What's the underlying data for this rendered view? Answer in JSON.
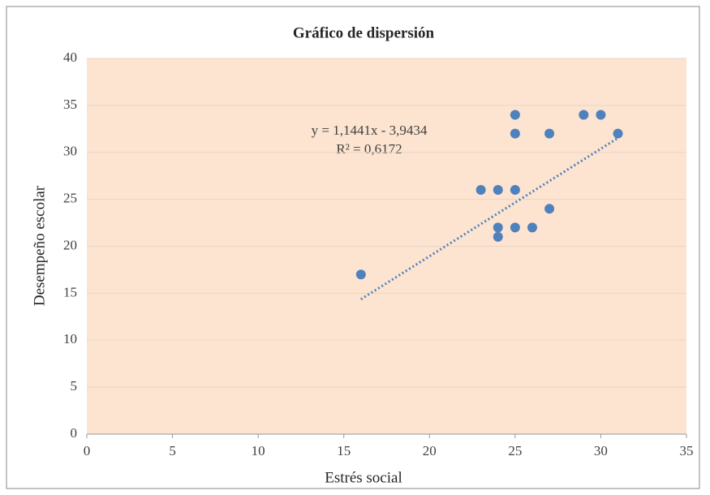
{
  "chart_data": {
    "type": "scatter",
    "title": "Gráfico de dispersión",
    "x_label": "Estrés social",
    "y_label": "Desempeño escolar",
    "x": [
      16,
      23,
      24,
      25,
      24,
      24,
      25,
      26,
      27,
      25,
      25,
      27,
      29,
      30,
      31
    ],
    "y": [
      17,
      26,
      26,
      26,
      22,
      21,
      22,
      22,
      24,
      34,
      32,
      32,
      34,
      34,
      32
    ],
    "color": "#4f81bd",
    "xlim": [
      0,
      35
    ],
    "xticks": [
      0,
      5,
      10,
      15,
      20,
      25,
      30,
      35
    ],
    "ylim": [
      0,
      40
    ],
    "yticks": [
      0,
      5,
      10,
      15,
      20,
      25,
      30,
      35,
      40
    ],
    "grid": true,
    "trendline": {
      "slope": 1.1441,
      "intercept": -3.9434,
      "label": "y = 1,1441x  - 3,9434",
      "r2_label": "R² = 0,6172"
    }
  }
}
